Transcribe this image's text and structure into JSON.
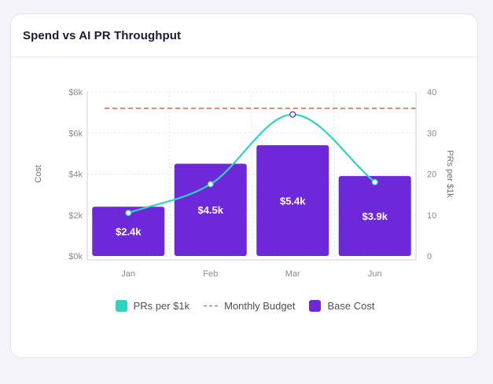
{
  "card": {
    "title": "Spend vs AI PR Throughput"
  },
  "colors": {
    "bar": "#6d28d9",
    "line": "#2dd4bf",
    "budget": "#ef6a3c",
    "grid": "#e6e6ee",
    "text": "#8a8a96"
  },
  "legend": [
    {
      "label": "PRs per $1k",
      "kind": "swatch",
      "color": "#2dd4bf"
    },
    {
      "label": "Monthly Budget",
      "kind": "dash",
      "color": "#ef6a3c"
    },
    {
      "label": "Base Cost",
      "kind": "swatch",
      "color": "#6d28d9"
    }
  ],
  "chart_data": {
    "type": "bar",
    "title": "Spend vs AI PR Throughput",
    "categories": [
      "Jan",
      "Feb",
      "Mar",
      "Jun"
    ],
    "series": [
      {
        "name": "Base Cost",
        "type": "bar",
        "axis": "left",
        "values": [
          2.4,
          4.5,
          5.4,
          3.9
        ],
        "labels": [
          "$2.4k",
          "$4.5k",
          "$5.4k",
          "$3.9k"
        ]
      },
      {
        "name": "PRs per $1k",
        "type": "line",
        "axis": "right",
        "smooth": true,
        "values": [
          10.5,
          17.5,
          34.5,
          18
        ]
      },
      {
        "name": "Monthly Budget",
        "type": "line",
        "axis": "left",
        "dashed": true,
        "value": 7.2
      }
    ],
    "ylabel": "Cost",
    "y2label": "PRs per $1k",
    "ylim": [
      0,
      8
    ],
    "y2lim": [
      0,
      40
    ],
    "yticks": [
      "$0k",
      "$2k",
      "$4k",
      "$6k",
      "$8k"
    ],
    "y2ticks": [
      "0",
      "10",
      "20",
      "30",
      "40"
    ],
    "grid": true,
    "legend_position": "bottom"
  }
}
